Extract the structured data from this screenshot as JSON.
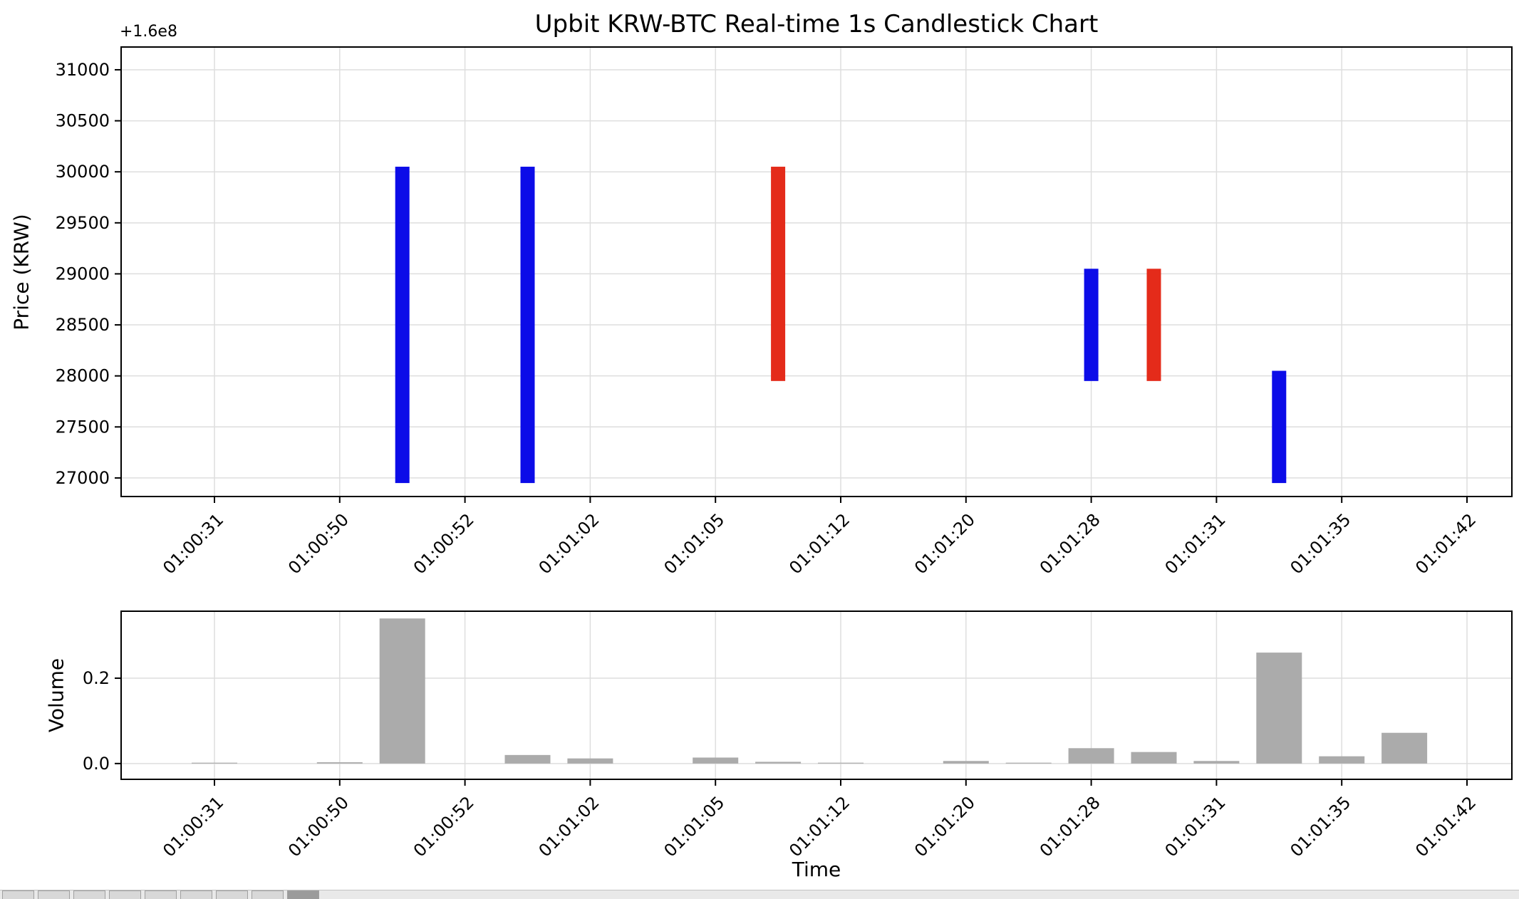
{
  "title": "Upbit KRW-BTC Real-time 1s Candlestick Chart",
  "chart_data": {
    "type": "candlestick",
    "title": "Upbit KRW-BTC Real-time 1s Candlestick Chart",
    "xlabel": "Time",
    "price_axis": {
      "ylabel": "Price (KRW)",
      "offset_label": "+1.6e8",
      "offset_base": 160000000,
      "ytick_labels": [
        "27000",
        "27500",
        "28000",
        "28500",
        "29000",
        "29500",
        "30000",
        "30500",
        "31000"
      ],
      "yticks": [
        27000,
        27500,
        28000,
        28500,
        29000,
        29500,
        30000,
        30500,
        31000
      ],
      "ylim": [
        26818,
        31223
      ]
    },
    "volume_axis": {
      "ylabel": "Volume",
      "ytick_labels": [
        "0.0",
        "0.2"
      ],
      "yticks": [
        0.0,
        0.2
      ],
      "ylim": [
        -0.037,
        0.357
      ]
    },
    "x_tick_labels": [
      "01:00:31",
      "01:00:50",
      "01:00:52",
      "01:01:02",
      "01:01:05",
      "01:01:12",
      "01:01:20",
      "01:01:28",
      "01:01:31",
      "01:01:35",
      "01:01:42"
    ],
    "x_tick_indices": [
      0,
      2,
      4,
      6,
      8,
      10,
      12,
      14,
      16,
      18,
      20
    ],
    "grid": true,
    "colors": {
      "up": "#e42b1a",
      "down": "#0c0ce8",
      "volume": "#ababab",
      "grid": "#dedede",
      "frame": "#000000",
      "background": "#ffffff"
    },
    "candles": [
      {
        "index": 3,
        "open": 30050,
        "close": 26950,
        "direction": "down"
      },
      {
        "index": 5,
        "open": 30050,
        "close": 26950,
        "direction": "down"
      },
      {
        "index": 9,
        "open": 27950,
        "close": 30050,
        "direction": "up"
      },
      {
        "index": 14,
        "open": 29050,
        "close": 27950,
        "direction": "down"
      },
      {
        "index": 15,
        "open": 27950,
        "close": 29050,
        "direction": "up"
      },
      {
        "index": 17,
        "open": 28050,
        "close": 26950,
        "direction": "down"
      }
    ],
    "volumes": [
      {
        "index": 0,
        "value": 0.002
      },
      {
        "index": 2,
        "value": 0.003
      },
      {
        "index": 3,
        "value": 0.34
      },
      {
        "index": 5,
        "value": 0.02
      },
      {
        "index": 6,
        "value": 0.012
      },
      {
        "index": 8,
        "value": 0.014
      },
      {
        "index": 9,
        "value": 0.004
      },
      {
        "index": 10,
        "value": 0.002
      },
      {
        "index": 12,
        "value": 0.006
      },
      {
        "index": 13,
        "value": 0.002
      },
      {
        "index": 14,
        "value": 0.036
      },
      {
        "index": 15,
        "value": 0.027
      },
      {
        "index": 16,
        "value": 0.006
      },
      {
        "index": 17,
        "value": 0.26
      },
      {
        "index": 18,
        "value": 0.017
      },
      {
        "index": 19,
        "value": 0.072
      }
    ]
  },
  "footer_toolbar": {
    "button_count": 9,
    "active_button_index": 8
  }
}
